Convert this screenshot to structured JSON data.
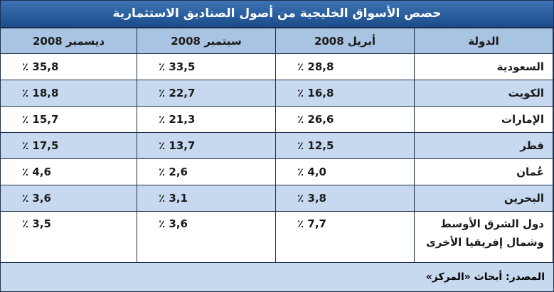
{
  "title": "حصص الأسواق الخليجية من أصول الصناديق الاستثمارية",
  "table": {
    "header": [
      "الدولة",
      "أبريل 2008",
      "سبتمبر 2008",
      "ديسمبر 2008"
    ],
    "rows": [
      [
        "السعودية",
        "٪ 28,8",
        "٪ 33,5",
        "٪ 35,8"
      ],
      [
        "الكويت",
        "٪ 16,8",
        "٪ 22,7",
        "٪ 18,8"
      ],
      [
        "الإمارات",
        "٪ 26,6",
        "٪ 21,3",
        "٪ 15,7"
      ],
      [
        "قطر",
        "٪ 12,5",
        "٪ 13,7",
        "٪ 17,5"
      ],
      [
        "عُمان",
        "٪ 4,0",
        "٪ 2,6",
        "٪ 4,6"
      ],
      [
        "البحرين",
        "٪ 3,8",
        "٪ 3,1",
        "٪ 3,6"
      ],
      [
        "دول الشرق الأوسط وشمال إفريقيا الأخرى",
        "٪ 7,7",
        "٪ 3,6",
        "٪ 3,5"
      ]
    ]
  },
  "source": "المصدر: أبحاث «المركز»"
}
